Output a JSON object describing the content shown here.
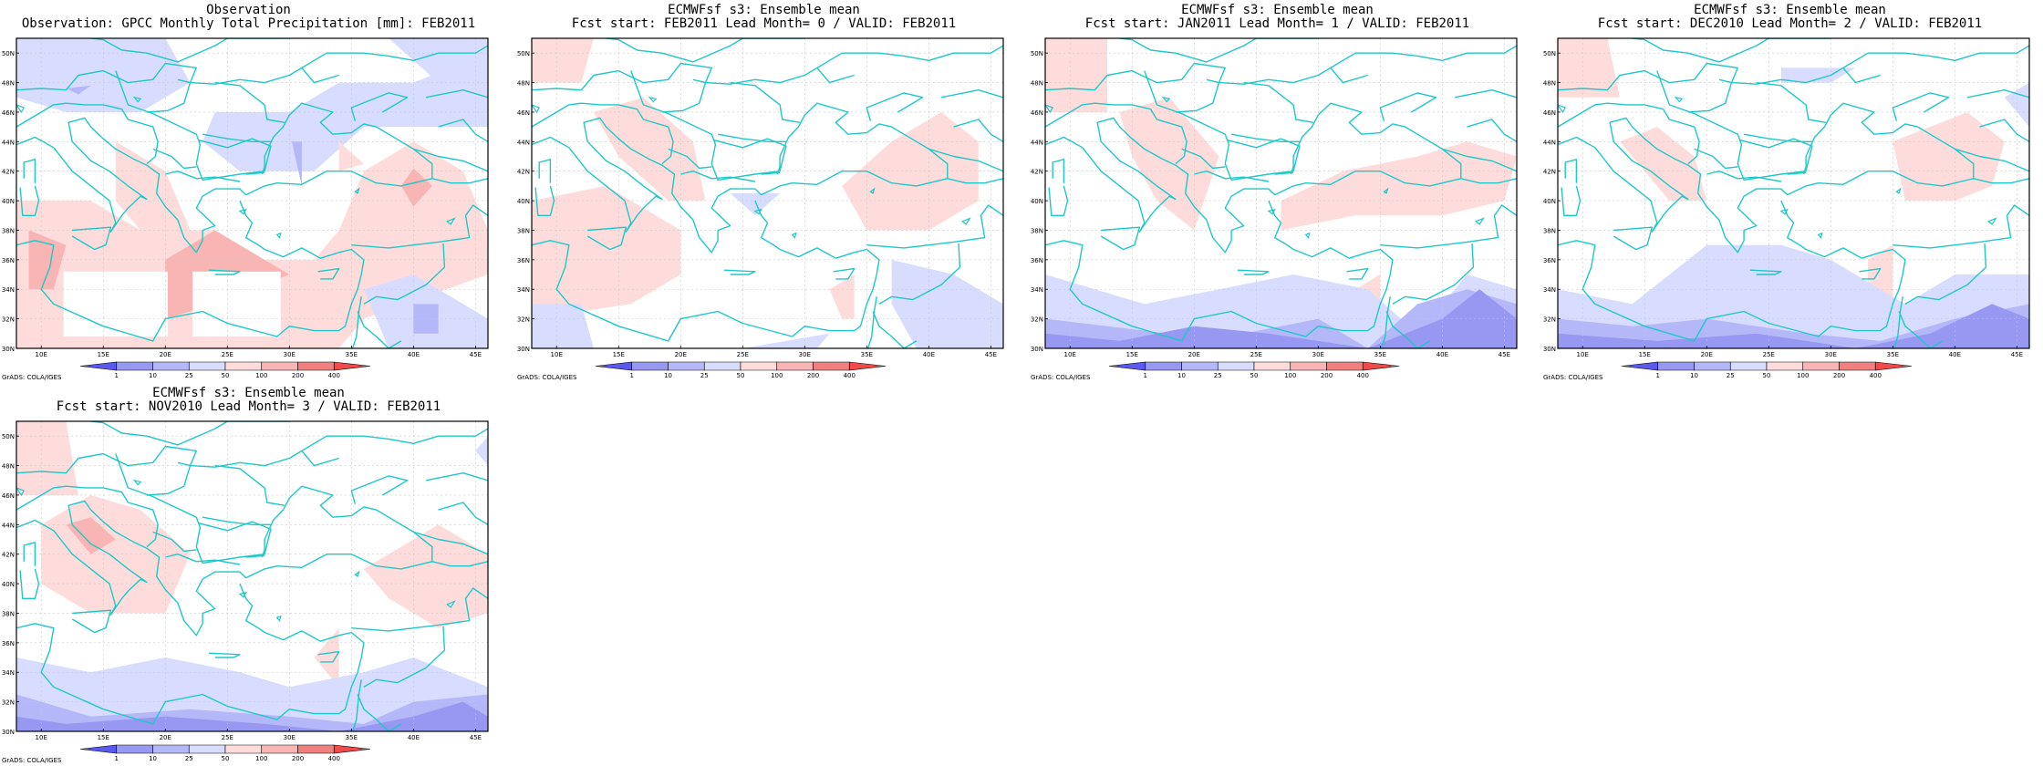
{
  "panels": [
    {
      "id": "obs",
      "title_line1": "Observation",
      "title_line2": "Observation: GPCC Monthly Total Precipitation [mm]: FEB2011",
      "map_variant": "obs"
    },
    {
      "id": "lead0",
      "title_line1": "ECMWFsf s3: Ensemble mean",
      "title_line2": "Fcst start: FEB2011  Lead Month= 0 / VALID: FEB2011",
      "map_variant": "lead0"
    },
    {
      "id": "lead1",
      "title_line1": "ECMWFsf s3: Ensemble mean",
      "title_line2": "Fcst start: JAN2011  Lead Month= 1 / VALID: FEB2011",
      "map_variant": "lead1"
    },
    {
      "id": "lead2",
      "title_line1": "ECMWFsf s3: Ensemble mean",
      "title_line2": "Fcst start: DEC2010  Lead Month= 2 / VALID: FEB2011",
      "map_variant": "lead2"
    },
    {
      "id": "lead3",
      "title_line1": "ECMWFsf s3: Ensemble mean",
      "title_line2": "Fcst start: NOV2010  Lead Month= 3 / VALID: FEB2011",
      "map_variant": "lead3"
    }
  ],
  "lat_labels": [
    "30N",
    "32N",
    "34N",
    "36N",
    "38N",
    "40N",
    "42N",
    "44N",
    "46N",
    "48N",
    "50N"
  ],
  "lon_labels": [
    "10E",
    "15E",
    "20E",
    "25E",
    "30E",
    "35E",
    "40E",
    "45E"
  ],
  "colorbar_labels": [
    "1",
    "10",
    "25",
    "50",
    "100",
    "200",
    "400"
  ],
  "grads_label": "GrADS: COLA/IGES",
  "colors": {
    "coast": "#1ec8c8",
    "blue_light": "#d8dcff",
    "blue_mid": "#b4b8f8",
    "blue_dark": "#9698f2",
    "blue_deep": "#5a5af0",
    "red_light": "#ffdcdc",
    "red_mid": "#f9b4b4",
    "red_dark": "#f08080",
    "red_deep": "#f04a4a"
  }
}
